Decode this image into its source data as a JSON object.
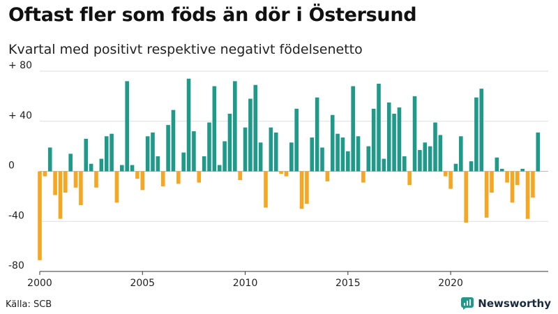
{
  "header": {
    "title": "Oftast fler som föds än dör i Östersund",
    "subtitle": "Kvartal med positivt respektive negativt födelsenetto"
  },
  "footer": {
    "source": "Källa: SCB",
    "brand": "Newsworthy"
  },
  "colors": {
    "positive": "#1f9a8a",
    "negative": "#f5a623",
    "grid": "#dddddd",
    "axis": "#333333",
    "brand_icon": "#1f9a8a"
  },
  "chart_data": {
    "type": "bar",
    "title": "Oftast fler som föds än dör i Östersund",
    "subtitle": "Kvartal med positivt respektive negativt födelsenetto",
    "xlabel": "",
    "ylabel": "",
    "ylim": [
      -80,
      80
    ],
    "xlim": [
      2000,
      2024.75
    ],
    "y_ticks": [
      80,
      40,
      0,
      -40,
      -80
    ],
    "y_tick_labels": [
      "+ 80",
      "+ 40",
      "0",
      "-40",
      "-80"
    ],
    "x_ticks": [
      2000,
      2005,
      2010,
      2015,
      2020
    ],
    "x_tick_labels": [
      "2000",
      "2005",
      "2010",
      "2015",
      "2020"
    ],
    "grid": true,
    "period_start": "2000 Q1",
    "periods_per_year": 4,
    "values": [
      -71,
      -4,
      19,
      -19,
      -38,
      -17,
      14,
      -13,
      -27,
      26,
      6,
      -13,
      10,
      28,
      30,
      -25,
      5,
      72,
      5,
      -6,
      -15,
      28,
      31,
      12,
      -12,
      37,
      49,
      -10,
      15,
      74,
      32,
      -9,
      12,
      39,
      68,
      5,
      24,
      46,
      72,
      -7,
      35,
      58,
      69,
      23,
      -29,
      35,
      31,
      -2,
      -4,
      23,
      50,
      -30,
      -26,
      27,
      59,
      19,
      -8,
      45,
      30,
      27,
      16,
      68,
      28,
      -9,
      20,
      50,
      70,
      10,
      55,
      46,
      51,
      12,
      -11,
      60,
      17,
      23,
      20,
      39,
      29,
      -4,
      -14,
      6,
      28,
      -41,
      8,
      59,
      66,
      -37,
      -17,
      11,
      2,
      -9,
      -25,
      -11,
      2,
      -38,
      -21,
      31
    ]
  }
}
